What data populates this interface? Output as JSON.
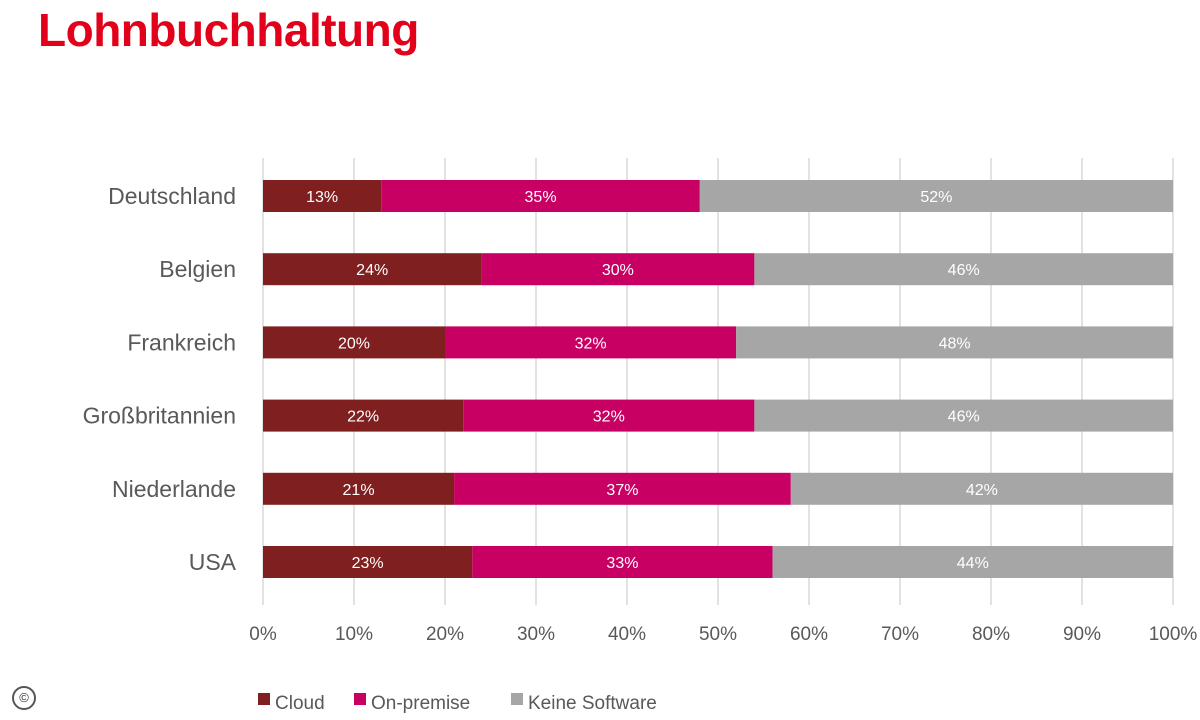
{
  "title": "Lohnbuchhaltung",
  "colors": {
    "title": "#e2001a",
    "cloud": "#7f1f1f",
    "on_premise": "#c80064",
    "keine_software": "#a6a6a6",
    "grid": "#d9d9d9",
    "text": "#595959"
  },
  "copyright_symbol": "©",
  "chart_data": {
    "type": "bar",
    "orientation": "horizontal",
    "stacked": "percent",
    "categories": [
      "Deutschland",
      "Belgien",
      "Frankreich",
      "Großbritannien",
      "Niederlande",
      "USA"
    ],
    "series": [
      {
        "name": "Cloud",
        "values": [
          13,
          24,
          20,
          22,
          21,
          23
        ],
        "labels": [
          "13%",
          "24%",
          "20%",
          "22%",
          "21%",
          "23%"
        ]
      },
      {
        "name": "On-premise",
        "values": [
          35,
          30,
          32,
          32,
          37,
          33
        ],
        "labels": [
          "35%",
          "30%",
          "32%",
          "32%",
          "37%",
          "33%"
        ]
      },
      {
        "name": "Keine Software",
        "values": [
          52,
          46,
          48,
          46,
          42,
          44
        ],
        "labels": [
          "52%",
          "46%",
          "48%",
          "46%",
          "42%",
          "44%"
        ]
      }
    ],
    "xlim": [
      0,
      100
    ],
    "x_ticks": [
      "0%",
      "10%",
      "20%",
      "30%",
      "40%",
      "50%",
      "60%",
      "70%",
      "80%",
      "90%",
      "100%"
    ],
    "grid": "vertical",
    "legend_position": "bottom"
  }
}
